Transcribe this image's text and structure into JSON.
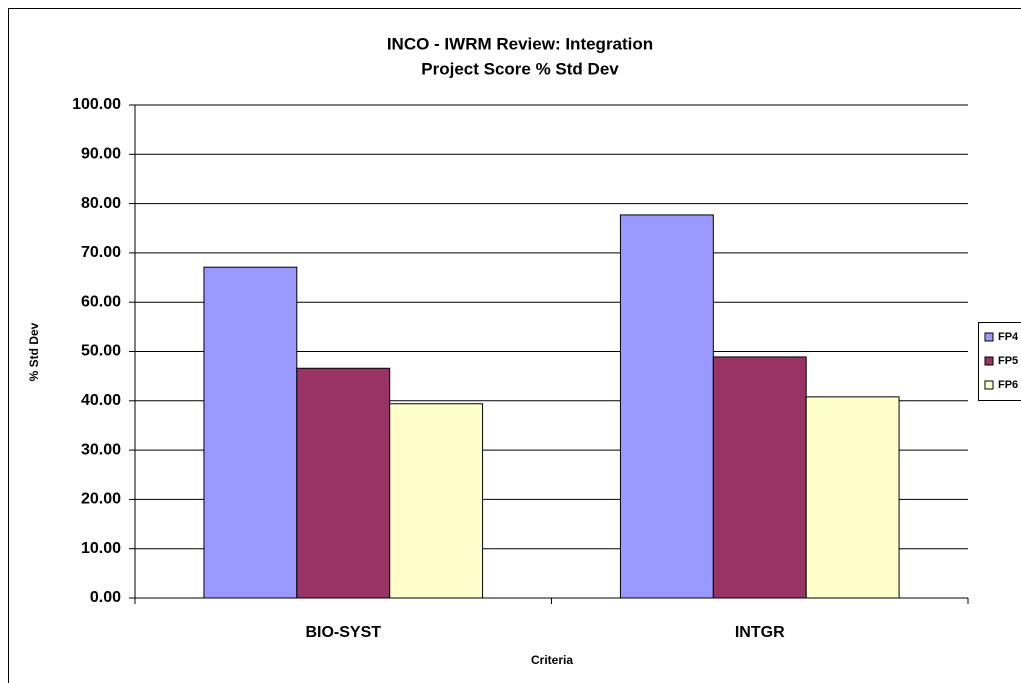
{
  "chart_data": {
    "type": "bar",
    "title": "INCO - IWRM Review: Integration",
    "subtitle": "Project Score % Std Dev",
    "x_label": "Criteria",
    "y_label": "% Std Dev",
    "categories": [
      "BIO-SYST",
      "INTGR"
    ],
    "series": [
      {
        "name": "FP4",
        "color": "#9999ff",
        "values": [
          67.1,
          77.7
        ]
      },
      {
        "name": "FP5",
        "color": "#993366",
        "values": [
          46.6,
          48.9
        ]
      },
      {
        "name": "FP6",
        "color": "#ffffcc",
        "values": [
          39.4,
          40.8
        ]
      }
    ],
    "ylim": [
      0,
      100
    ],
    "yticks": [
      {
        "value": 0,
        "label": "0.00"
      },
      {
        "value": 10,
        "label": "10.00"
      },
      {
        "value": 20,
        "label": "20.00"
      },
      {
        "value": 30,
        "label": "30.00"
      },
      {
        "value": 40,
        "label": "40.00"
      },
      {
        "value": 50,
        "label": "50.00"
      },
      {
        "value": 60,
        "label": "60.00"
      },
      {
        "value": 70,
        "label": "70.00"
      },
      {
        "value": 80,
        "label": "80.00"
      },
      {
        "value": 90,
        "label": "90.00"
      },
      {
        "value": 100,
        "label": "100.00"
      }
    ],
    "grid": true,
    "legend": "right"
  }
}
